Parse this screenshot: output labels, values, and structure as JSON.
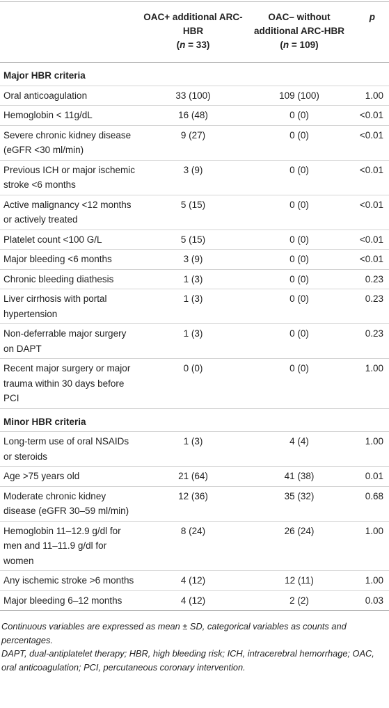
{
  "table": {
    "header": {
      "label": "",
      "columns": [
        {
          "title": "OAC+ additional ARC-HBR",
          "count": [
            "(",
            "n",
            " = 33)"
          ]
        },
        {
          "title": "OAC– without additional ARC-HBR",
          "count": [
            "(",
            "n",
            " = 109)"
          ]
        }
      ],
      "p": "p"
    },
    "sections": [
      {
        "title": "Major HBR criteria",
        "rows": [
          [
            "Oral anticoagulation",
            "33 (100)",
            "109 (100)",
            "1.00"
          ],
          [
            "Hemoglobin < 11g/dL",
            "16 (48)",
            "0 (0)",
            "<0.01"
          ],
          [
            "Severe chronic kidney disease (eGFR <30 ml/min)",
            "9 (27)",
            "0 (0)",
            "<0.01"
          ],
          [
            "Previous ICH or major ischemic stroke <6 months",
            "3 (9)",
            "0 (0)",
            "<0.01"
          ],
          [
            "Active malignancy <12 months or actively treated",
            "5 (15)",
            "0 (0)",
            "<0.01"
          ],
          [
            "Platelet count <100 G/L",
            "5 (15)",
            "0 (0)",
            "<0.01"
          ],
          [
            "Major bleeding <6 months",
            "3 (9)",
            "0 (0)",
            "<0.01"
          ],
          [
            "Chronic bleeding diathesis",
            "1 (3)",
            "0 (0)",
            "0.23"
          ],
          [
            "Liver cirrhosis with portal hypertension",
            "1 (3)",
            "0 (0)",
            "0.23"
          ],
          [
            "Non-deferrable major surgery on DAPT",
            "1 (3)",
            "0 (0)",
            "0.23"
          ],
          [
            "Recent major surgery or major trauma within 30 days before PCI",
            "0 (0)",
            "0 (0)",
            "1.00"
          ]
        ]
      },
      {
        "title": "Minor HBR criteria",
        "rows": [
          [
            "Long-term use of oral NSAIDs or steroids",
            "1 (3)",
            "4 (4)",
            "1.00"
          ],
          [
            "Age >75 years old",
            "21 (64)",
            "41 (38)",
            "0.01"
          ],
          [
            "Moderate chronic kidney disease (eGFR 30–59 ml/min)",
            "12 (36)",
            "35 (32)",
            "0.68"
          ],
          [
            "Hemoglobin 11–12.9 g/dl for men and 11–11.9 g/dl for women",
            "8 (24)",
            "26 (24)",
            "1.00"
          ],
          [
            "Any ischemic stroke >6 months",
            "4 (12)",
            "12 (11)",
            "1.00"
          ],
          [
            "Major bleeding 6–12 months",
            "4 (12)",
            "2 (2)",
            "0.03"
          ]
        ]
      }
    ],
    "footnotes": [
      "Continuous variables are expressed as mean ± SD, categorical variables as counts and percentages.",
      "DAPT, dual-antiplatelet therapy; HBR, high bleeding risk; ICH, intracerebral hemorrhage; OAC, oral anticoagulation; PCI, percutaneous coronary intervention."
    ]
  }
}
